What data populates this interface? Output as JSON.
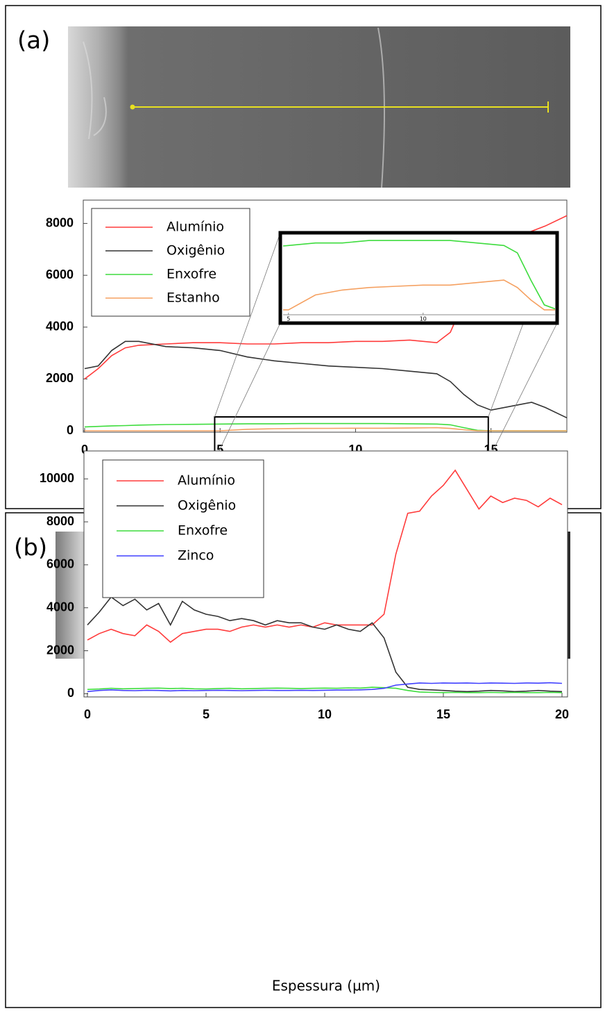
{
  "chart_data": [
    {
      "type": "line",
      "panel_label": "(a)",
      "x_label": "Espessura (µm)",
      "xlim": [
        0,
        17.8
      ],
      "ylim": [
        0,
        8900
      ],
      "xticks": [
        0,
        5,
        10,
        15
      ],
      "yticks": [
        0,
        2000,
        4000,
        6000,
        8000
      ],
      "grid": false,
      "legend": "upper left",
      "x": [
        0,
        0.5,
        1,
        1.5,
        2,
        3,
        4,
        5,
        6,
        7,
        8,
        9,
        10,
        11,
        12,
        13,
        13.5,
        14,
        14.5,
        15,
        16,
        16.5,
        17,
        17.8
      ],
      "series": [
        {
          "name": "Alumínio",
          "color": "#ff3b3b",
          "values": [
            2000,
            2400,
            2900,
            3200,
            3300,
            3350,
            3400,
            3400,
            3350,
            3350,
            3400,
            3400,
            3450,
            3450,
            3500,
            3400,
            3800,
            5000,
            5800,
            6500,
            7500,
            7700,
            7900,
            8300
          ]
        },
        {
          "name": "Oxigênio",
          "color": "#333333",
          "values": [
            2400,
            2500,
            3100,
            3450,
            3450,
            3250,
            3200,
            3100,
            2850,
            2700,
            2600,
            2500,
            2450,
            2400,
            2300,
            2200,
            1900,
            1400,
            1000,
            800,
            1000,
            1100,
            900,
            500
          ]
        },
        {
          "name": "Enxofre",
          "color": "#3ddc3d",
          "values": [
            150,
            170,
            190,
            200,
            220,
            240,
            250,
            260,
            270,
            270,
            280,
            280,
            280,
            280,
            270,
            260,
            230,
            120,
            20,
            0,
            0,
            0,
            0,
            0
          ]
        },
        {
          "name": "Estanho",
          "color": "#f5a060",
          "values": [
            0,
            0,
            0,
            0,
            0,
            0,
            0,
            0,
            60,
            80,
            90,
            95,
            100,
            100,
            110,
            120,
            90,
            40,
            0,
            0,
            0,
            0,
            0,
            0
          ]
        }
      ],
      "inset": {
        "xlim": [
          4.8,
          14.9
        ],
        "ylim": [
          -20,
          300
        ],
        "xticks": [
          5,
          10
        ]
      }
    },
    {
      "type": "line",
      "panel_label": "(b)",
      "x_label": "Espessura (µm)",
      "xlim": [
        0,
        20
      ],
      "ylim": [
        -150,
        11300
      ],
      "xticks": [
        0,
        5,
        10,
        15,
        20
      ],
      "yticks": [
        0,
        2000,
        4000,
        6000,
        8000,
        10000
      ],
      "grid": false,
      "legend": "upper left",
      "x": [
        0,
        0.5,
        1,
        1.5,
        2,
        2.5,
        3,
        3.5,
        4,
        4.5,
        5,
        5.5,
        6,
        6.5,
        7,
        7.5,
        8,
        8.5,
        9,
        9.5,
        10,
        10.5,
        11,
        11.5,
        12,
        12.5,
        13,
        13.5,
        14,
        14.5,
        15,
        15.5,
        16,
        16.5,
        17,
        17.5,
        18,
        18.5,
        19,
        19.5,
        20
      ],
      "series": [
        {
          "name": "Alumínio",
          "color": "#ff3b3b",
          "values": [
            2500,
            2800,
            3000,
            2800,
            2700,
            3200,
            2900,
            2400,
            2800,
            2900,
            3000,
            3000,
            2900,
            3100,
            3200,
            3100,
            3200,
            3100,
            3200,
            3100,
            3300,
            3200,
            3200,
            3200,
            3200,
            3700,
            6500,
            8400,
            8500,
            9200,
            9700,
            10400,
            9500,
            8600,
            9200,
            8900,
            9100,
            9000,
            8700,
            9100,
            8800
          ]
        },
        {
          "name": "Oxigênio",
          "color": "#333333",
          "values": [
            3200,
            3800,
            4500,
            4100,
            4400,
            3900,
            4200,
            3200,
            4300,
            3900,
            3700,
            3600,
            3400,
            3500,
            3400,
            3200,
            3400,
            3300,
            3300,
            3100,
            3000,
            3200,
            3000,
            2900,
            3300,
            2600,
            1000,
            300,
            200,
            180,
            150,
            120,
            100,
            120,
            150,
            130,
            100,
            120,
            150,
            120,
            100
          ]
        },
        {
          "name": "Enxofre",
          "color": "#3ddc3d",
          "values": [
            200,
            220,
            250,
            230,
            240,
            250,
            260,
            240,
            250,
            230,
            220,
            240,
            250,
            230,
            240,
            250,
            260,
            250,
            240,
            250,
            260,
            250,
            270,
            260,
            300,
            280,
            250,
            150,
            80,
            60,
            50,
            60,
            50,
            50,
            60,
            50,
            60,
            50,
            50,
            60,
            50
          ]
        },
        {
          "name": "Zinco",
          "color": "#4040ff",
          "values": [
            100,
            150,
            180,
            150,
            140,
            160,
            150,
            130,
            150,
            140,
            150,
            160,
            150,
            140,
            150,
            160,
            150,
            150,
            160,
            150,
            160,
            170,
            170,
            180,
            200,
            250,
            400,
            450,
            500,
            480,
            500,
            490,
            500,
            480,
            500,
            490,
            480,
            500,
            490,
            510,
            480
          ]
        }
      ]
    }
  ]
}
